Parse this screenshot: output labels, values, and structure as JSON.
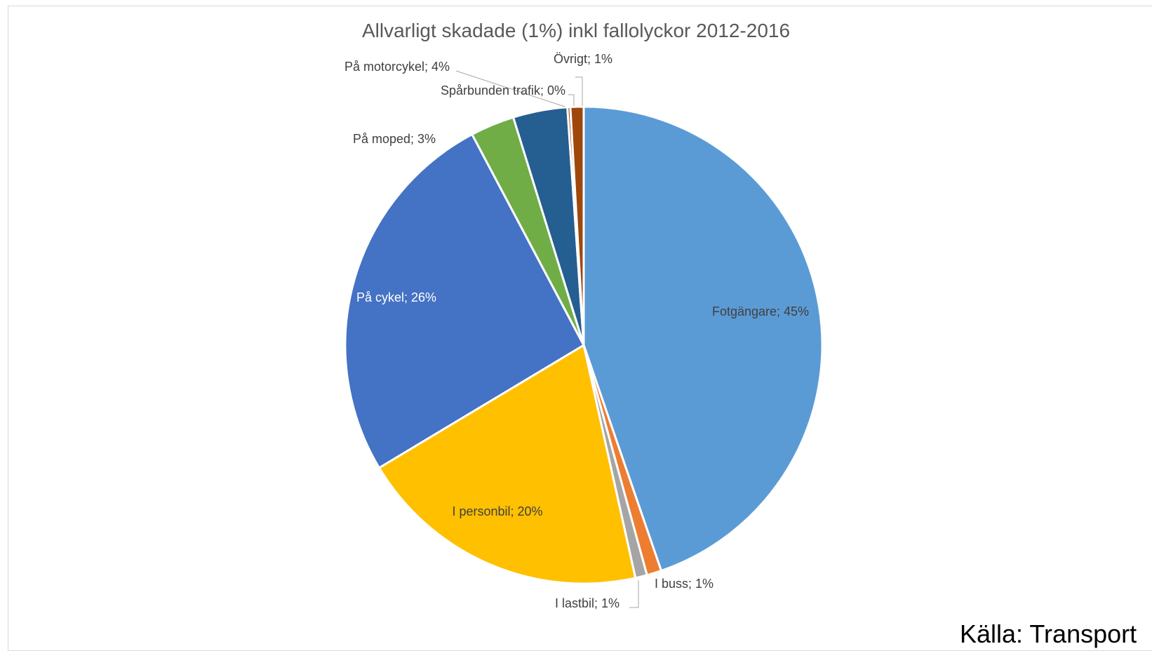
{
  "source_note": "Källa: Transport",
  "chart_data": {
    "type": "pie",
    "title": "Allvarligt skadade (1%) inkl fallolyckor 2012-2016",
    "slices": [
      {
        "label": "Fotgängare; 45%",
        "value": 45,
        "color": "#5b9bd5",
        "text_color": "#404040"
      },
      {
        "label": "I buss; 1%",
        "value": 1,
        "color": "#ed7d31",
        "text_color": "#404040"
      },
      {
        "label": "I lastbil; 1%",
        "value": 0.8,
        "color": "#a5a5a5",
        "text_color": "#404040"
      },
      {
        "label": "I personbil; 20%",
        "value": 20,
        "color": "#ffc000",
        "text_color": "#404040"
      },
      {
        "label": "På cykel; 26%",
        "value": 26,
        "color": "#4472c4",
        "text_color": "#ffffff"
      },
      {
        "label": "På moped; 3%",
        "value": 3,
        "color": "#70ad47",
        "text_color": "#404040"
      },
      {
        "label": "På motorcykel; 4%",
        "value": 3.7,
        "color": "#255e91",
        "text_color": "#404040"
      },
      {
        "label": "Spårbunden trafik; 0%",
        "value": 0.2,
        "color": "#9e480e",
        "text_color": "#404040"
      },
      {
        "label": "Övrigt; 1%",
        "value": 0.9,
        "color": "#9e480e",
        "text_color": "#404040"
      }
    ]
  }
}
